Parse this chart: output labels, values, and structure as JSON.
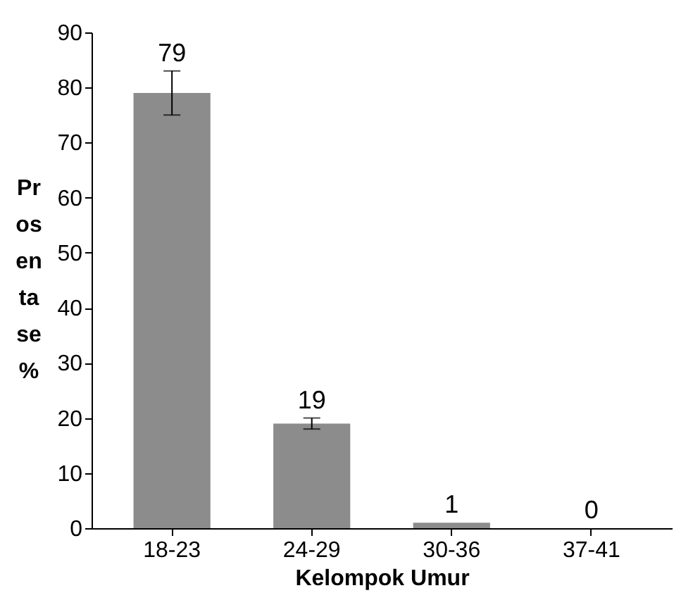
{
  "chart_data": {
    "type": "bar",
    "xlabel": "Kelompok Umur",
    "ylabel": "Pr os en ta se %",
    "categories": [
      "18-23",
      "24-29",
      "30-36",
      "37-41"
    ],
    "values": [
      79,
      19,
      1,
      0
    ],
    "errors": [
      [
        75,
        83
      ],
      [
        18,
        20
      ],
      null,
      null
    ],
    "color": "#8c8c8c",
    "ylim": [
      0,
      90
    ],
    "yticks": [
      0,
      10,
      20,
      30,
      40,
      50,
      60,
      70,
      80,
      90
    ],
    "data_labels": true,
    "grid": false
  }
}
